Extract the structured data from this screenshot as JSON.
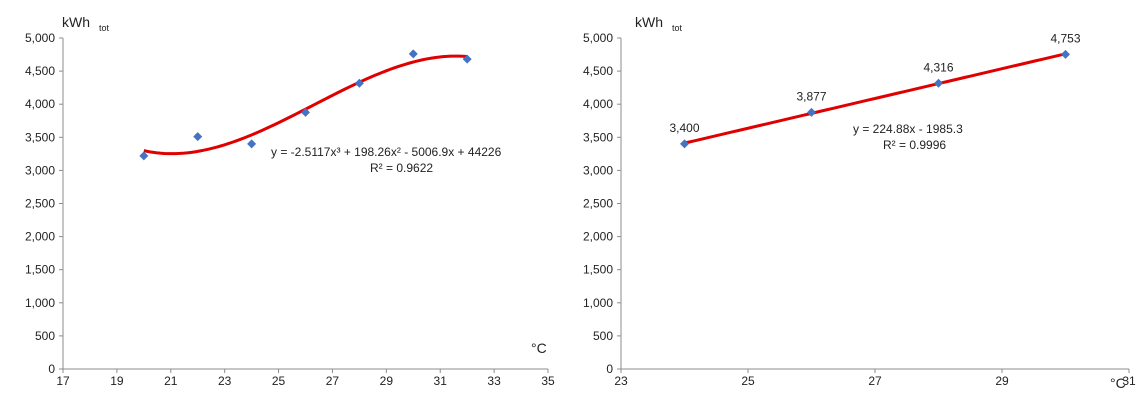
{
  "chart_data": [
    {
      "type": "scatter",
      "ylabel_main": "kWh",
      "ylabel_sub": "tot",
      "xlabel": "°C",
      "xlim": [
        17,
        35
      ],
      "ylim": [
        0,
        5000
      ],
      "xticks": [
        "17",
        "19",
        "21",
        "23",
        "25",
        "27",
        "29",
        "31",
        "33",
        "35"
      ],
      "yticks": [
        "0",
        "500",
        "1,000",
        "1,500",
        "2,000",
        "2,500",
        "3,000",
        "3,500",
        "4,000",
        "4,500",
        "5,000"
      ],
      "points": [
        {
          "x": 20,
          "y": 3220
        },
        {
          "x": 22,
          "y": 3510
        },
        {
          "x": 24,
          "y": 3400
        },
        {
          "x": 26,
          "y": 3877
        },
        {
          "x": 28,
          "y": 4316
        },
        {
          "x": 30,
          "y": 4760
        },
        {
          "x": 32,
          "y": 4680
        }
      ],
      "trendline": {
        "type": "poly3",
        "coef": [
          -2.5117,
          198.26,
          -5006.9,
          44226
        ],
        "x_range": [
          20,
          32
        ],
        "color": "#e00000"
      },
      "equation_text": "y = -2.5117x³ + 198.26x² - 5006.9x + 44226",
      "r2_text": "R² = 0.9622",
      "marker_color": "#4472c4",
      "grid": false
    },
    {
      "type": "scatter",
      "ylabel_main": "kWh",
      "ylabel_sub": "tot",
      "xlabel": "°C",
      "xlim": [
        23,
        31
      ],
      "ylim": [
        0,
        5000
      ],
      "xticks": [
        "23",
        "25",
        "27",
        "29",
        "31"
      ],
      "yticks": [
        "0",
        "500",
        "1,000",
        "1,500",
        "2,000",
        "2,500",
        "3,000",
        "3,500",
        "4,000",
        "4,500",
        "5,000"
      ],
      "points": [
        {
          "x": 24,
          "y": 3400,
          "label": "3,400"
        },
        {
          "x": 26,
          "y": 3877,
          "label": "3,877"
        },
        {
          "x": 28,
          "y": 4316,
          "label": "4,316"
        },
        {
          "x": 30,
          "y": 4753,
          "label": "4,753"
        }
      ],
      "trendline": {
        "type": "linear",
        "coef": [
          224.88,
          -1985.3
        ],
        "x_range": [
          24,
          30
        ],
        "color": "#e00000"
      },
      "equation_text": "y = 224.88x - 1985.3",
      "r2_text": "R² = 0.9996",
      "marker_color": "#4472c4",
      "grid": false
    }
  ]
}
